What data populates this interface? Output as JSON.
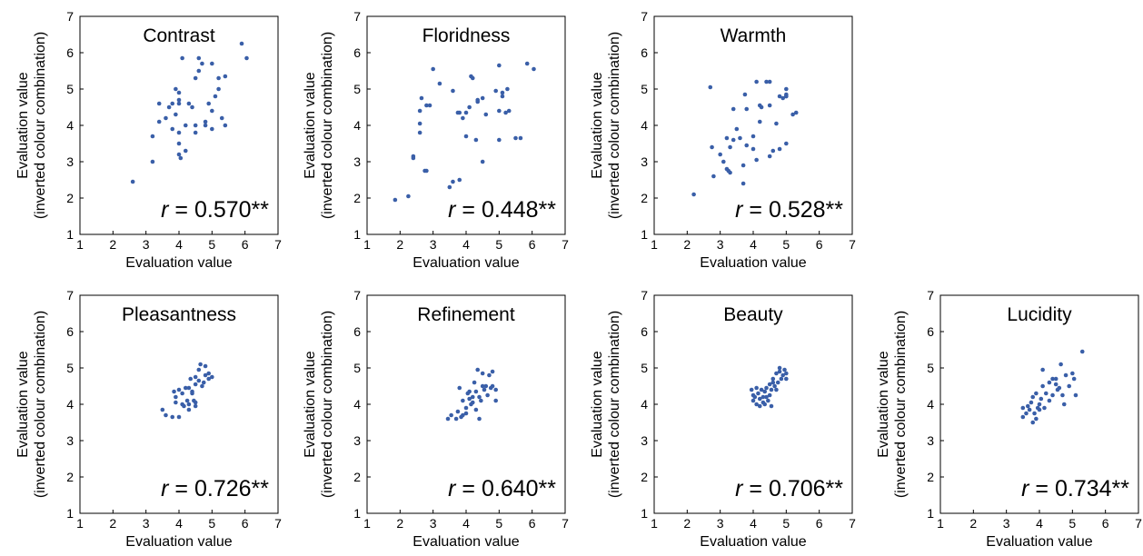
{
  "chart_data": [
    {
      "type": "scatter",
      "title": "Contrast",
      "xlabel": "Evaluation value",
      "ylabel_lines": [
        "Evaluation value",
        "(inverted colour combination)"
      ],
      "xlim": [
        1,
        7
      ],
      "ylim": [
        1,
        7
      ],
      "xticks": [
        "1",
        "2",
        "3",
        "4",
        "5",
        "6",
        "7"
      ],
      "yticks": [
        "1",
        "2",
        "3",
        "4",
        "5",
        "6",
        "7"
      ],
      "r_label": "r",
      "r_value": " = 0.570**",
      "color": "#3a5fa8",
      "points": [
        [
          2.6,
          2.45
        ],
        [
          3.2,
          3.0
        ],
        [
          3.2,
          3.7
        ],
        [
          3.4,
          4.1
        ],
        [
          3.4,
          4.6
        ],
        [
          3.6,
          4.2
        ],
        [
          3.7,
          4.5
        ],
        [
          3.8,
          3.9
        ],
        [
          3.8,
          4.6
        ],
        [
          3.9,
          4.3
        ],
        [
          3.9,
          5.0
        ],
        [
          4.0,
          3.5
        ],
        [
          4.0,
          3.8
        ],
        [
          4.0,
          4.6
        ],
        [
          4.0,
          4.7
        ],
        [
          4.0,
          4.9
        ],
        [
          4.0,
          3.2
        ],
        [
          4.05,
          3.1
        ],
        [
          4.1,
          5.85
        ],
        [
          4.2,
          4.0
        ],
        [
          4.2,
          3.3
        ],
        [
          4.3,
          4.6
        ],
        [
          4.4,
          4.5
        ],
        [
          4.5,
          4.0
        ],
        [
          4.5,
          3.8
        ],
        [
          4.5,
          5.3
        ],
        [
          4.6,
          5.5
        ],
        [
          4.6,
          5.85
        ],
        [
          4.7,
          5.7
        ],
        [
          4.8,
          4.1
        ],
        [
          4.8,
          4.0
        ],
        [
          4.9,
          4.6
        ],
        [
          5.0,
          5.7
        ],
        [
          5.0,
          3.9
        ],
        [
          5.0,
          4.4
        ],
        [
          5.1,
          4.8
        ],
        [
          5.2,
          5.3
        ],
        [
          5.2,
          5.0
        ],
        [
          5.3,
          4.2
        ],
        [
          5.4,
          4.0
        ],
        [
          5.4,
          5.35
        ],
        [
          5.9,
          6.25
        ],
        [
          6.05,
          5.85
        ]
      ]
    },
    {
      "type": "scatter",
      "title": "Floridness",
      "xlabel": "Evaluation value",
      "ylabel_lines": [
        "Evaluation value",
        "(inverted colour combination)"
      ],
      "xlim": [
        1,
        7
      ],
      "ylim": [
        1,
        7
      ],
      "xticks": [
        "1",
        "2",
        "3",
        "4",
        "5",
        "6",
        "7"
      ],
      "yticks": [
        "1",
        "2",
        "3",
        "4",
        "5",
        "6",
        "7"
      ],
      "r_label": "r",
      "r_value": " = 0.448**",
      "color": "#3a5fa8",
      "points": [
        [
          1.85,
          1.95
        ],
        [
          2.25,
          2.05
        ],
        [
          2.4,
          3.1
        ],
        [
          2.4,
          3.15
        ],
        [
          2.6,
          3.8
        ],
        [
          2.6,
          4.05
        ],
        [
          2.6,
          4.4
        ],
        [
          2.65,
          4.75
        ],
        [
          2.75,
          2.75
        ],
        [
          2.8,
          2.75
        ],
        [
          2.8,
          4.55
        ],
        [
          2.9,
          4.55
        ],
        [
          3.0,
          5.55
        ],
        [
          3.2,
          5.15
        ],
        [
          3.5,
          2.3
        ],
        [
          3.6,
          4.95
        ],
        [
          3.6,
          2.45
        ],
        [
          3.75,
          4.35
        ],
        [
          3.8,
          2.5
        ],
        [
          3.8,
          4.35
        ],
        [
          3.9,
          4.2
        ],
        [
          4.0,
          4.35
        ],
        [
          4.0,
          3.7
        ],
        [
          4.1,
          4.5
        ],
        [
          4.15,
          5.35
        ],
        [
          4.2,
          5.3
        ],
        [
          4.3,
          3.6
        ],
        [
          4.35,
          4.65
        ],
        [
          4.35,
          4.7
        ],
        [
          4.5,
          3.0
        ],
        [
          4.5,
          4.75
        ],
        [
          4.6,
          4.3
        ],
        [
          4.9,
          4.95
        ],
        [
          5.0,
          4.4
        ],
        [
          5.0,
          3.6
        ],
        [
          5.0,
          5.65
        ],
        [
          5.1,
          4.9
        ],
        [
          5.1,
          4.8
        ],
        [
          5.2,
          4.35
        ],
        [
          5.25,
          5.0
        ],
        [
          5.3,
          4.4
        ],
        [
          5.5,
          3.65
        ],
        [
          5.65,
          3.65
        ],
        [
          5.85,
          5.7
        ],
        [
          6.05,
          5.55
        ]
      ]
    },
    {
      "type": "scatter",
      "title": "Warmth",
      "xlabel": "Evaluation value",
      "ylabel_lines": [
        "Evaluation value",
        "(inverted colour combination)"
      ],
      "xlim": [
        1,
        7
      ],
      "ylim": [
        1,
        7
      ],
      "xticks": [
        "1",
        "2",
        "3",
        "4",
        "5",
        "6",
        "7"
      ],
      "yticks": [
        "1",
        "2",
        "3",
        "4",
        "5",
        "6",
        "7"
      ],
      "r_label": "r",
      "r_value": " = 0.528**",
      "color": "#3a5fa8",
      "points": [
        [
          2.2,
          2.1
        ],
        [
          2.7,
          5.05
        ],
        [
          2.75,
          3.4
        ],
        [
          2.8,
          2.6
        ],
        [
          3.0,
          3.2
        ],
        [
          3.1,
          3.0
        ],
        [
          3.2,
          3.65
        ],
        [
          3.2,
          2.8
        ],
        [
          3.25,
          2.75
        ],
        [
          3.3,
          2.7
        ],
        [
          3.3,
          3.4
        ],
        [
          3.4,
          3.6
        ],
        [
          3.4,
          4.45
        ],
        [
          3.5,
          3.9
        ],
        [
          3.6,
          3.65
        ],
        [
          3.7,
          2.4
        ],
        [
          3.7,
          2.9
        ],
        [
          3.75,
          4.85
        ],
        [
          3.8,
          3.45
        ],
        [
          3.8,
          4.45
        ],
        [
          4.0,
          3.7
        ],
        [
          4.0,
          3.35
        ],
        [
          4.1,
          5.2
        ],
        [
          4.1,
          3.05
        ],
        [
          4.2,
          4.1
        ],
        [
          4.2,
          4.55
        ],
        [
          4.25,
          4.5
        ],
        [
          4.4,
          5.2
        ],
        [
          4.5,
          5.2
        ],
        [
          4.5,
          4.55
        ],
        [
          4.5,
          3.15
        ],
        [
          4.6,
          3.3
        ],
        [
          4.7,
          4.05
        ],
        [
          4.8,
          3.35
        ],
        [
          4.8,
          4.8
        ],
        [
          4.9,
          4.75
        ],
        [
          5.0,
          4.85
        ],
        [
          5.0,
          4.8
        ],
        [
          5.0,
          4.8
        ],
        [
          5.0,
          3.5
        ],
        [
          5.0,
          5.0
        ],
        [
          5.2,
          4.3
        ],
        [
          5.3,
          4.35
        ]
      ]
    },
    {
      "type": "scatter",
      "title": "Pleasantness",
      "xlabel": "Evaluation value",
      "ylabel_lines": [
        "Evaluation value",
        "(inverted colour combination)"
      ],
      "xlim": [
        1,
        7
      ],
      "ylim": [
        1,
        7
      ],
      "xticks": [
        "1",
        "2",
        "3",
        "4",
        "5",
        "6",
        "7"
      ],
      "yticks": [
        "1",
        "2",
        "3",
        "4",
        "5",
        "6",
        "7"
      ],
      "r_label": "r",
      "r_value": " = 0.726**",
      "color": "#3a5fa8",
      "points": [
        [
          3.5,
          3.85
        ],
        [
          3.6,
          3.7
        ],
        [
          3.8,
          3.65
        ],
        [
          3.85,
          4.35
        ],
        [
          3.9,
          4.05
        ],
        [
          3.9,
          4.2
        ],
        [
          4.0,
          3.65
        ],
        [
          4.0,
          4.4
        ],
        [
          4.1,
          4.0
        ],
        [
          4.1,
          4.3
        ],
        [
          4.15,
          3.95
        ],
        [
          4.2,
          4.45
        ],
        [
          4.25,
          4.1
        ],
        [
          4.3,
          3.85
        ],
        [
          4.3,
          4.45
        ],
        [
          4.3,
          4.0
        ],
        [
          4.35,
          4.7
        ],
        [
          4.4,
          4.3
        ],
        [
          4.4,
          4.35
        ],
        [
          4.45,
          4.1
        ],
        [
          4.5,
          4.05
        ],
        [
          4.5,
          4.55
        ],
        [
          4.5,
          3.95
        ],
        [
          4.5,
          4.75
        ],
        [
          4.6,
          4.65
        ],
        [
          4.6,
          4.95
        ],
        [
          4.65,
          5.1
        ],
        [
          4.7,
          4.5
        ],
        [
          4.75,
          4.6
        ],
        [
          4.8,
          4.8
        ],
        [
          4.8,
          5.05
        ],
        [
          4.9,
          4.7
        ],
        [
          4.9,
          4.85
        ],
        [
          5.0,
          4.75
        ]
      ]
    },
    {
      "type": "scatter",
      "title": "Refinement",
      "xlabel": "Evaluation value",
      "ylabel_lines": [
        "Evaluation value",
        "(inverted colour combination)"
      ],
      "xlim": [
        1,
        7
      ],
      "ylim": [
        1,
        7
      ],
      "xticks": [
        "1",
        "2",
        "3",
        "4",
        "5",
        "6",
        "7"
      ],
      "yticks": [
        "1",
        "2",
        "3",
        "4",
        "5",
        "6",
        "7"
      ],
      "r_label": "r",
      "r_value": " = 0.640**",
      "color": "#3a5fa8",
      "points": [
        [
          3.45,
          3.6
        ],
        [
          3.55,
          3.7
        ],
        [
          3.7,
          3.6
        ],
        [
          3.75,
          3.8
        ],
        [
          3.8,
          4.45
        ],
        [
          3.85,
          3.65
        ],
        [
          3.9,
          3.7
        ],
        [
          3.9,
          4.1
        ],
        [
          4.0,
          3.75
        ],
        [
          4.0,
          3.9
        ],
        [
          4.05,
          4.3
        ],
        [
          4.1,
          4.15
        ],
        [
          4.1,
          4.35
        ],
        [
          4.15,
          4.0
        ],
        [
          4.2,
          4.2
        ],
        [
          4.2,
          4.05
        ],
        [
          4.25,
          4.6
        ],
        [
          4.3,
          3.85
        ],
        [
          4.3,
          4.35
        ],
        [
          4.35,
          4.95
        ],
        [
          4.4,
          4.2
        ],
        [
          4.4,
          3.6
        ],
        [
          4.45,
          4.1
        ],
        [
          4.5,
          4.5
        ],
        [
          4.5,
          4.85
        ],
        [
          4.55,
          4.4
        ],
        [
          4.6,
          4.5
        ],
        [
          4.65,
          4.25
        ],
        [
          4.7,
          4.8
        ],
        [
          4.75,
          4.45
        ],
        [
          4.8,
          4.9
        ],
        [
          4.8,
          4.5
        ],
        [
          4.9,
          4.1
        ],
        [
          4.9,
          4.4
        ]
      ]
    },
    {
      "type": "scatter",
      "title": "Beauty",
      "xlabel": "Evaluation value",
      "ylabel_lines": [
        "Evaluation value",
        "(inverted colour combination)"
      ],
      "xlim": [
        1,
        7
      ],
      "ylim": [
        1,
        7
      ],
      "xticks": [
        "1",
        "2",
        "3",
        "4",
        "5",
        "6",
        "7"
      ],
      "yticks": [
        "1",
        "2",
        "3",
        "4",
        "5",
        "6",
        "7"
      ],
      "r_label": "r",
      "r_value": " = 0.706**",
      "color": "#3a5fa8",
      "points": [
        [
          3.95,
          4.4
        ],
        [
          4.0,
          4.25
        ],
        [
          4.0,
          4.1
        ],
        [
          4.05,
          4.2
        ],
        [
          4.1,
          4.0
        ],
        [
          4.1,
          4.45
        ],
        [
          4.15,
          4.3
        ],
        [
          4.2,
          4.15
        ],
        [
          4.2,
          3.95
        ],
        [
          4.25,
          4.4
        ],
        [
          4.3,
          4.2
        ],
        [
          4.3,
          4.05
        ],
        [
          4.35,
          4.35
        ],
        [
          4.35,
          4.0
        ],
        [
          4.4,
          4.45
        ],
        [
          4.4,
          4.2
        ],
        [
          4.45,
          4.1
        ],
        [
          4.5,
          4.25
        ],
        [
          4.5,
          4.55
        ],
        [
          4.55,
          4.4
        ],
        [
          4.55,
          3.95
        ],
        [
          4.6,
          4.6
        ],
        [
          4.6,
          4.7
        ],
        [
          4.65,
          4.5
        ],
        [
          4.7,
          4.85
        ],
        [
          4.7,
          4.4
        ],
        [
          4.75,
          4.6
        ],
        [
          4.8,
          4.9
        ],
        [
          4.8,
          5.0
        ],
        [
          4.85,
          4.7
        ],
        [
          4.9,
          4.8
        ],
        [
          4.95,
          4.95
        ],
        [
          5.0,
          4.7
        ],
        [
          5.0,
          4.85
        ]
      ]
    },
    {
      "type": "scatter",
      "title": "Lucidity",
      "xlabel": "Evaluation value",
      "ylabel_lines": [
        "Evaluation value",
        "(inverted colour combination)"
      ],
      "xlim": [
        1,
        7
      ],
      "ylim": [
        1,
        7
      ],
      "xticks": [
        "1",
        "2",
        "3",
        "4",
        "5",
        "6",
        "7"
      ],
      "yticks": [
        "1",
        "2",
        "3",
        "4",
        "5",
        "6",
        "7"
      ],
      "r_label": "r",
      "r_value": " = 0.734**",
      "color": "#3a5fa8",
      "points": [
        [
          3.5,
          3.65
        ],
        [
          3.5,
          3.9
        ],
        [
          3.6,
          3.75
        ],
        [
          3.65,
          3.95
        ],
        [
          3.7,
          3.85
        ],
        [
          3.75,
          4.05
        ],
        [
          3.8,
          3.5
        ],
        [
          3.8,
          4.2
        ],
        [
          3.85,
          3.75
        ],
        [
          3.9,
          4.3
        ],
        [
          3.9,
          3.6
        ],
        [
          3.95,
          3.9
        ],
        [
          4.0,
          4.0
        ],
        [
          4.0,
          3.85
        ],
        [
          4.05,
          4.15
        ],
        [
          4.1,
          4.5
        ],
        [
          4.1,
          4.95
        ],
        [
          4.15,
          3.9
        ],
        [
          4.2,
          4.3
        ],
        [
          4.3,
          4.1
        ],
        [
          4.3,
          4.6
        ],
        [
          4.4,
          4.7
        ],
        [
          4.4,
          4.25
        ],
        [
          4.5,
          4.55
        ],
        [
          4.5,
          4.7
        ],
        [
          4.55,
          4.4
        ],
        [
          4.6,
          4.45
        ],
        [
          4.65,
          5.1
        ],
        [
          4.7,
          4.25
        ],
        [
          4.75,
          4.0
        ],
        [
          4.8,
          4.8
        ],
        [
          4.9,
          4.5
        ],
        [
          5.0,
          4.85
        ],
        [
          5.05,
          4.7
        ],
        [
          5.1,
          4.25
        ],
        [
          5.3,
          5.45
        ]
      ]
    }
  ]
}
